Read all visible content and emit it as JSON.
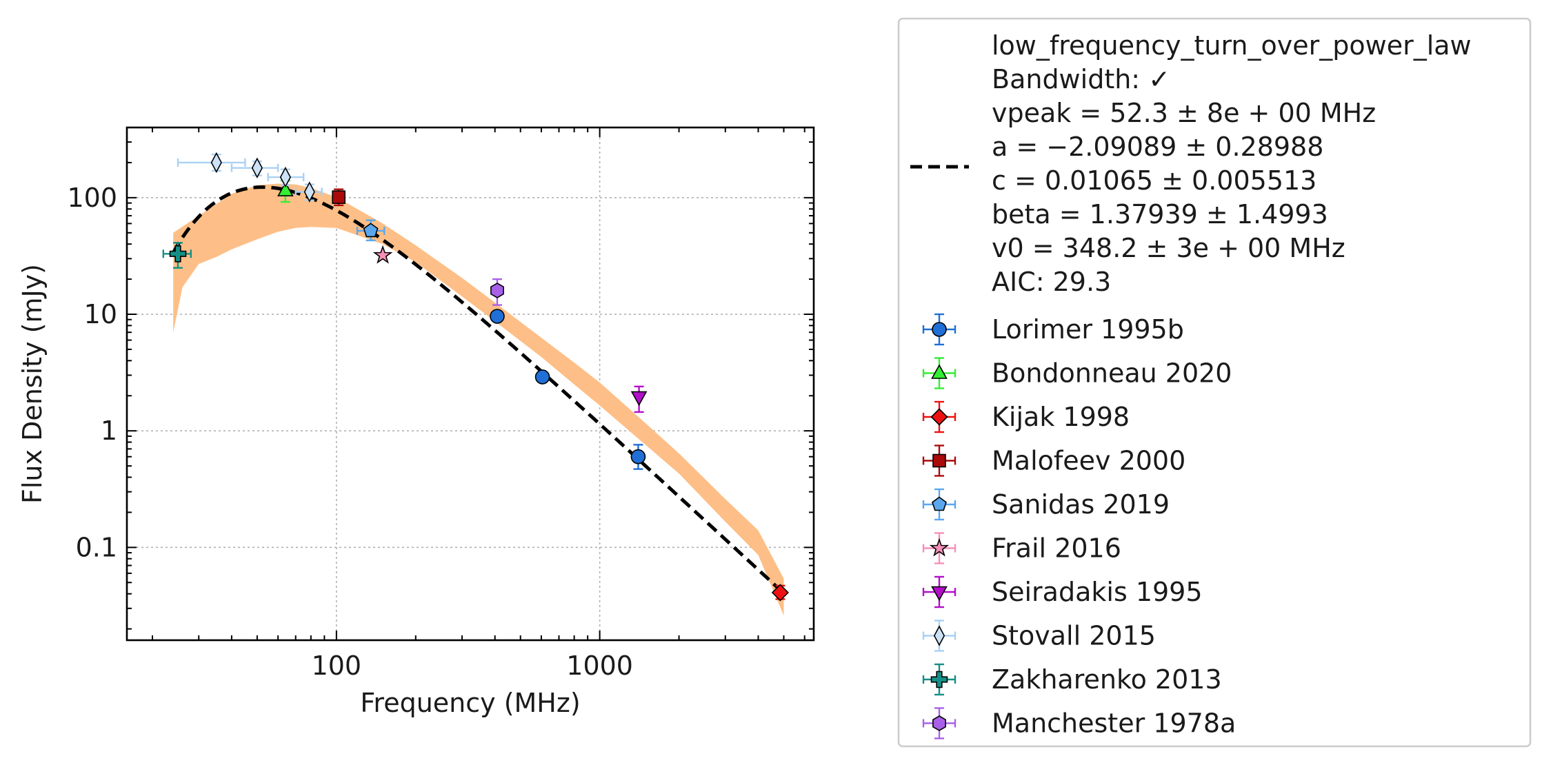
{
  "chart_data": {
    "type": "scatter",
    "title": "",
    "xlabel": "Frequency (MHz)",
    "ylabel": "Flux Density (mJy)",
    "xscale": "log",
    "yscale": "log",
    "xlim": [
      16,
      6500
    ],
    "ylim": [
      0.016,
      400
    ],
    "x_ticks": [
      100,
      1000
    ],
    "x_tick_labels": [
      "100",
      "1000"
    ],
    "y_ticks": [
      0.1,
      1,
      10,
      100
    ],
    "y_tick_labels": [
      "0.1",
      "1",
      "10",
      "100"
    ],
    "grid": true,
    "legend_position": "outside-right",
    "fit": {
      "name": "low_frequency_turn_over_power_law",
      "model": "low_frequency_turn_over_power_law",
      "legend_lines": [
        "low_frequency_turn_over_power_law",
        "Bandwidth: ✓",
        "vpeak = 52.3 ± 8e + 00 MHz",
        "a = −2.09089 ± 0.28988",
        "c = 0.01065 ± 0.005513",
        "beta = 1.37939 ± 1.4993",
        "v0 = 348.2 ± 3e + 00 MHz",
        "AIC: 29.3"
      ],
      "params": {
        "vpeak": 52.3,
        "a": -2.09089,
        "c": 0.01065,
        "beta": 1.37939,
        "v0": 348.2
      },
      "line_color": "#000000",
      "band_color": "#fdbf87",
      "band_upper": [
        [
          24,
          50
        ],
        [
          30,
          70
        ],
        [
          40,
          108
        ],
        [
          50,
          128
        ],
        [
          60,
          132
        ],
        [
          70,
          130
        ],
        [
          80,
          121
        ],
        [
          100,
          101
        ],
        [
          150,
          60
        ],
        [
          200,
          39
        ],
        [
          300,
          20.5
        ],
        [
          400,
          12.6
        ],
        [
          600,
          6.3
        ],
        [
          800,
          3.85
        ],
        [
          1000,
          2.6
        ],
        [
          1500,
          1.15
        ],
        [
          2000,
          0.64
        ],
        [
          3000,
          0.26
        ],
        [
          4000,
          0.14
        ],
        [
          5000,
          0.054
        ]
      ],
      "band_lower": [
        [
          24,
          7
        ],
        [
          26,
          17
        ],
        [
          30,
          27
        ],
        [
          35,
          31
        ],
        [
          40,
          36
        ],
        [
          50,
          44
        ],
        [
          60,
          51
        ],
        [
          70,
          55
        ],
        [
          80,
          56
        ],
        [
          100,
          55
        ],
        [
          150,
          40
        ],
        [
          200,
          28
        ],
        [
          300,
          14.2
        ],
        [
          400,
          8.7
        ],
        [
          600,
          4.3
        ],
        [
          800,
          2.5
        ],
        [
          1000,
          1.65
        ],
        [
          1500,
          0.75
        ],
        [
          2000,
          0.43
        ],
        [
          3000,
          0.166
        ],
        [
          4000,
          0.086
        ],
        [
          5000,
          0.026
        ]
      ]
    },
    "series": [
      {
        "name": "Lorimer 1995b",
        "marker": "circle",
        "color": "#1f6fd6",
        "ecolor": "#1f6fd6",
        "points": [
          {
            "x": 408,
            "y": 9.6
          },
          {
            "x": 606,
            "y": 2.9
          },
          {
            "x": 1400,
            "y": 0.6,
            "yerr": [
              0.47,
              0.76
            ]
          }
        ]
      },
      {
        "name": "Bondonneau 2020",
        "marker": "triangle-up",
        "color": "#33ee33",
        "ecolor": "#33ee33",
        "points": [
          {
            "x": 64,
            "y": 115,
            "yerr": [
              92,
              140
            ]
          }
        ]
      },
      {
        "name": "Kijak 1998",
        "marker": "diamond",
        "color": "#ee1111",
        "ecolor": "#ee1111",
        "points": [
          {
            "x": 4850,
            "y": 0.041,
            "yerr": [
              0.036,
              0.047
            ]
          }
        ]
      },
      {
        "name": "Malofeev 2000",
        "marker": "square",
        "color": "#aa0a0a",
        "ecolor": "#aa0a0a",
        "points": [
          {
            "x": 102,
            "y": 101,
            "yerr": [
              86,
              118
            ]
          }
        ]
      },
      {
        "name": "Sanidas 2019",
        "marker": "pentagon",
        "color": "#5aa7ee",
        "ecolor": "#5aa7ee",
        "points": [
          {
            "x": 135,
            "y": 52,
            "yerr": [
              43,
              64
            ],
            "xerr": [
              120,
              152
            ]
          }
        ]
      },
      {
        "name": "Frail 2016",
        "marker": "star",
        "color": "#f78fb9",
        "ecolor": "#f78fb9",
        "points": [
          {
            "x": 150,
            "y": 32
          }
        ]
      },
      {
        "name": "Seiradakis 1995",
        "marker": "triangle-down",
        "color": "#b30fc9",
        "ecolor": "#b30fc9",
        "points": [
          {
            "x": 1410,
            "y": 1.95,
            "yerr": [
              1.45,
              2.4
            ]
          }
        ]
      },
      {
        "name": "Stovall 2015",
        "marker": "thin-diamond",
        "color": "#cde2f6",
        "ecolor": "#a9d1f4",
        "points": [
          {
            "x": 35,
            "y": 200,
            "yerr": [
              170,
              235
            ],
            "xerr": [
              25,
              45
            ]
          },
          {
            "x": 50,
            "y": 180,
            "yerr": [
              155,
              205
            ],
            "xerr": [
              40,
              60
            ]
          },
          {
            "x": 64,
            "y": 150,
            "yerr": [
              128,
              175
            ],
            "xerr": [
              55,
              75
            ]
          },
          {
            "x": 79,
            "y": 112,
            "yerr": [
              95,
              130
            ],
            "xerr": [
              70,
              88
            ]
          }
        ]
      },
      {
        "name": "Zakharenko 2013",
        "marker": "plus",
        "color": "#148f86",
        "ecolor": "#148f86",
        "points": [
          {
            "x": 25,
            "y": 33,
            "yerr": [
              25,
              41
            ],
            "xerr": [
              22,
              28
            ]
          }
        ]
      },
      {
        "name": "Manchester 1978a",
        "marker": "hexagon",
        "color": "#a860e8",
        "ecolor": "#a860e8",
        "points": [
          {
            "x": 408,
            "y": 16,
            "yerr": [
              12,
              20
            ]
          }
        ]
      }
    ]
  }
}
